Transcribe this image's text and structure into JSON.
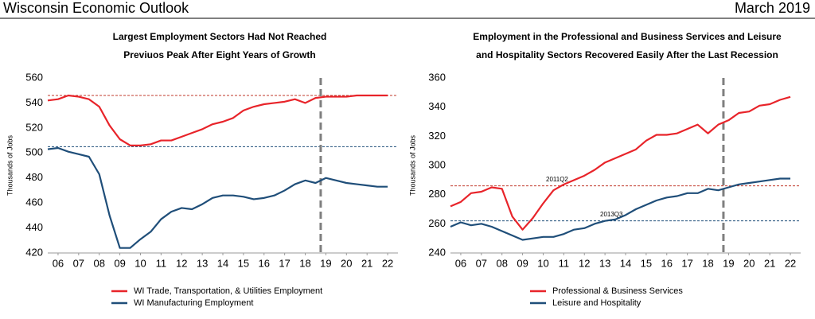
{
  "header": {
    "title": "Wisconsin Economic Outlook",
    "date": "March 2019"
  },
  "chart_data": [
    {
      "type": "line",
      "title": [
        "Largest Employment Sectors Had Not Reached",
        "Previuos Peak After Eight Years of Growth"
      ],
      "ylabel": "Thousands of Jobs",
      "x": [
        2006,
        2006.5,
        2007,
        2007.5,
        2008,
        2008.5,
        2009,
        2009.5,
        2010,
        2010.5,
        2011,
        2011.5,
        2012,
        2012.5,
        2013,
        2013.5,
        2014,
        2014.5,
        2015,
        2015.5,
        2016,
        2016.5,
        2017,
        2017.5,
        2018,
        2018.5,
        2019,
        2019.5,
        2020,
        2020.5,
        2021,
        2021.5,
        2022,
        2022.5
      ],
      "xlim": [
        2006,
        2023
      ],
      "xticks": [
        {
          "value": 2006.5,
          "label": "06"
        },
        {
          "value": 2007.5,
          "label": "07"
        },
        {
          "value": 2008.5,
          "label": "08"
        },
        {
          "value": 2009.5,
          "label": "09"
        },
        {
          "value": 2010.5,
          "label": "10"
        },
        {
          "value": 2011.5,
          "label": "11"
        },
        {
          "value": 2012.5,
          "label": "12"
        },
        {
          "value": 2013.5,
          "label": "13"
        },
        {
          "value": 2014.5,
          "label": "14"
        },
        {
          "value": 2015.5,
          "label": "15"
        },
        {
          "value": 2016.5,
          "label": "16"
        },
        {
          "value": 2017.5,
          "label": "17"
        },
        {
          "value": 2018.5,
          "label": "18"
        },
        {
          "value": 2019.5,
          "label": "19"
        },
        {
          "value": 2020.5,
          "label": "20"
        },
        {
          "value": 2021.5,
          "label": "21"
        },
        {
          "value": 2022.5,
          "label": "22"
        }
      ],
      "ylim": [
        420,
        560
      ],
      "yticks": [
        420,
        440,
        460,
        480,
        500,
        520,
        540,
        560
      ],
      "forecast_start": 2019.25,
      "ref_lines": [
        {
          "value": 546,
          "color": "#c0392b"
        },
        {
          "value": 505,
          "color": "#1f4e79"
        }
      ],
      "series": [
        {
          "name": "WI Trade, Transportation, & Utilities Employment",
          "color": "#e8242a",
          "values": [
            542,
            543,
            546,
            545,
            543,
            537,
            522,
            511,
            506,
            506,
            507,
            510,
            510,
            513,
            516,
            519,
            523,
            525,
            528,
            534,
            537,
            539,
            540,
            541,
            543,
            540,
            544,
            545,
            545,
            545,
            546,
            546,
            546,
            546
          ]
        },
        {
          "name": "WI Manufacturing Employment",
          "color": "#1f4e79",
          "values": [
            503,
            504,
            501,
            499,
            497,
            483,
            450,
            424,
            424,
            431,
            437,
            447,
            453,
            456,
            455,
            459,
            464,
            466,
            466,
            465,
            463,
            464,
            466,
            470,
            475,
            478,
            476,
            480,
            478,
            476,
            475,
            474,
            473,
            473
          ]
        }
      ]
    },
    {
      "type": "line",
      "title": [
        "Employment in the Professional and Business Services and Leisure",
        "and Hospitality Sectors Recovered Easily After the Last Recession"
      ],
      "ylabel": "Thousands of Jobs",
      "x": [
        2006,
        2006.5,
        2007,
        2007.5,
        2008,
        2008.5,
        2009,
        2009.5,
        2010,
        2010.5,
        2011,
        2011.5,
        2012,
        2012.5,
        2013,
        2013.5,
        2014,
        2014.5,
        2015,
        2015.5,
        2016,
        2016.5,
        2017,
        2017.5,
        2018,
        2018.5,
        2019,
        2019.5,
        2020,
        2020.5,
        2021,
        2021.5,
        2022,
        2022.5
      ],
      "xlim": [
        2006,
        2023
      ],
      "xticks": [
        {
          "value": 2006.5,
          "label": "06"
        },
        {
          "value": 2007.5,
          "label": "07"
        },
        {
          "value": 2008.5,
          "label": "08"
        },
        {
          "value": 2009.5,
          "label": "09"
        },
        {
          "value": 2010.5,
          "label": "10"
        },
        {
          "value": 2011.5,
          "label": "11"
        },
        {
          "value": 2012.5,
          "label": "12"
        },
        {
          "value": 2013.5,
          "label": "13"
        },
        {
          "value": 2014.5,
          "label": "14"
        },
        {
          "value": 2015.5,
          "label": "15"
        },
        {
          "value": 2016.5,
          "label": "16"
        },
        {
          "value": 2017.5,
          "label": "17"
        },
        {
          "value": 2018.5,
          "label": "18"
        },
        {
          "value": 2019.5,
          "label": "19"
        },
        {
          "value": 2020.5,
          "label": "20"
        },
        {
          "value": 2021.5,
          "label": "21"
        },
        {
          "value": 2022.5,
          "label": "22"
        }
      ],
      "ylim": [
        240,
        360
      ],
      "yticks": [
        240,
        260,
        280,
        300,
        320,
        340,
        360
      ],
      "forecast_start": 2019.25,
      "ref_lines": [
        {
          "value": 286,
          "color": "#c0392b",
          "label": "2011Q2"
        },
        {
          "value": 262,
          "color": "#1f4e79",
          "label": "2013Q3"
        }
      ],
      "series": [
        {
          "name": "Professional & Business Services",
          "color": "#e8242a",
          "values": [
            272,
            275,
            281,
            282,
            285,
            284,
            265,
            256,
            264,
            274,
            283,
            287,
            290,
            293,
            297,
            302,
            305,
            308,
            311,
            317,
            321,
            321,
            322,
            325,
            328,
            322,
            328,
            331,
            336,
            337,
            341,
            342,
            345,
            347
          ]
        },
        {
          "name": "Leisure and Hospitality",
          "color": "#1f4e79",
          "values": [
            258,
            261,
            259,
            260,
            258,
            255,
            252,
            249,
            250,
            251,
            251,
            253,
            256,
            257,
            260,
            262,
            263,
            266,
            270,
            273,
            276,
            278,
            279,
            281,
            281,
            284,
            283,
            285,
            287,
            288,
            289,
            290,
            291,
            291
          ]
        }
      ]
    }
  ]
}
